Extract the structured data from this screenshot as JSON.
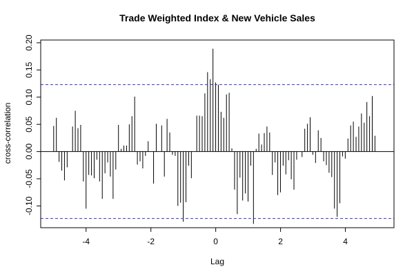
{
  "chart_data": {
    "type": "bar",
    "title": "Trade Weighted Index & New Vehicle Sales",
    "xlabel": "Lag",
    "ylabel": "cross-correlation",
    "xlim": [
      -5.4,
      5.5
    ],
    "ylim": [
      -0.14,
      0.205
    ],
    "x_ticks": [
      -4,
      -2,
      0,
      2,
      4
    ],
    "x_tick_labels": [
      "-4",
      "-2",
      "0",
      "2",
      "4"
    ],
    "y_ticks": [
      -0.1,
      -0.05,
      0.0,
      0.05,
      0.1,
      0.15,
      0.2
    ],
    "y_tick_labels": [
      "-0.10",
      "-0.05",
      "0.00",
      "0.05",
      "0.10",
      "0.15",
      "0.20"
    ],
    "confidence_band": [
      0.123,
      -0.123
    ],
    "bar_color": "#000000",
    "ci_color": "#3333cc",
    "lag_start": -5.0,
    "lag_step": 0.0833,
    "values": [
      0.047,
      0.062,
      -0.019,
      -0.035,
      -0.053,
      -0.029,
      0.0,
      0.046,
      0.075,
      0.043,
      0.049,
      -0.055,
      -0.105,
      -0.043,
      -0.044,
      -0.049,
      -0.015,
      -0.055,
      -0.087,
      -0.04,
      -0.02,
      -0.046,
      -0.087,
      -0.033,
      0.049,
      0.005,
      0.011,
      0.011,
      0.05,
      0.065,
      0.101,
      -0.024,
      -0.018,
      -0.031,
      -0.008,
      0.019,
      0.0,
      -0.059,
      0.051,
      0.0,
      0.048,
      -0.046,
      0.06,
      0.035,
      -0.006,
      -0.008,
      -0.1,
      -0.094,
      -0.129,
      -0.093,
      -0.026,
      -0.049,
      0.0,
      0.066,
      0.066,
      0.065,
      0.107,
      0.146,
      0.133,
      0.189,
      0.127,
      0.123,
      0.073,
      0.062,
      0.105,
      0.108,
      0.006,
      -0.07,
      -0.115,
      -0.048,
      -0.09,
      -0.077,
      -0.092,
      -0.026,
      -0.133,
      0.005,
      0.033,
      0.013,
      0.034,
      0.046,
      0.035,
      -0.043,
      -0.02,
      -0.08,
      -0.075,
      -0.026,
      -0.042,
      -0.016,
      -0.051,
      -0.07,
      -0.015,
      0.0,
      -0.01,
      0.042,
      0.051,
      0.063,
      -0.006,
      -0.021,
      0.039,
      0.025,
      -0.018,
      -0.025,
      -0.039,
      -0.047,
      -0.105,
      -0.12,
      -0.095,
      -0.009,
      -0.013,
      0.024,
      0.048,
      0.055,
      0.027,
      0.046,
      0.07,
      0.053,
      0.091,
      0.065,
      0.102,
      0.029
    ]
  }
}
